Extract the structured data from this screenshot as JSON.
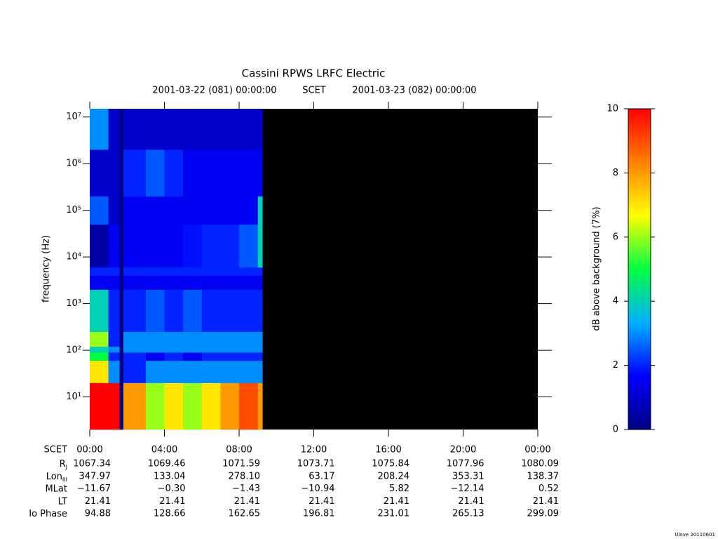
{
  "chart_data": {
    "type": "spectrogram",
    "title": "Cassini RPWS LRFC Electric",
    "subtitle_left": "2001-03-22 (081) 00:00:00",
    "subtitle_center": "SCET",
    "subtitle_right": "2001-03-23 (082) 00:00:00",
    "ylabel": "frequency (Hz)",
    "xlim": [
      0,
      24
    ],
    "xticks": [
      {
        "value": 0,
        "label": "00:00"
      },
      {
        "value": 4,
        "label": "04:00"
      },
      {
        "value": 8,
        "label": "08:00"
      },
      {
        "value": 12,
        "label": "12:00"
      },
      {
        "value": 16,
        "label": "16:00"
      },
      {
        "value": 20,
        "label": "20:00"
      },
      {
        "value": 24,
        "label": "00:00"
      }
    ],
    "ylim": [
      2,
      15000000
    ],
    "yscale": "log",
    "yticks": [
      {
        "value": 10,
        "label": "10¹"
      },
      {
        "value": 100,
        "label": "10²"
      },
      {
        "value": 1000,
        "label": "10³"
      },
      {
        "value": 10000,
        "label": "10⁴"
      },
      {
        "value": 100000,
        "label": "10⁵"
      },
      {
        "value": 1000000,
        "label": "10⁶"
      },
      {
        "value": 10000000,
        "label": "10⁷"
      }
    ],
    "background": "#000000",
    "time_edges": [
      0,
      1,
      1.6,
      1.8,
      3,
      4,
      5,
      6,
      7,
      8,
      9,
      9.25
    ],
    "freq_edges": [
      2,
      20,
      60,
      90,
      120,
      250,
      2000,
      4000,
      6000,
      50000,
      200000,
      2000000,
      15000000
    ],
    "z": [
      [
        10,
        10,
        0,
        8,
        6,
        7,
        6,
        7,
        8,
        9,
        8
      ],
      [
        7,
        3,
        0,
        2,
        3,
        3,
        3,
        3,
        3,
        3,
        3
      ],
      [
        5,
        2,
        0,
        2,
        1.5,
        2,
        1.5,
        2,
        2,
        2,
        2
      ],
      [
        4,
        3,
        0,
        3,
        3,
        3,
        3,
        3,
        3,
        3,
        3
      ],
      [
        6,
        2,
        0,
        3,
        3,
        3,
        3,
        3,
        3,
        3,
        3
      ],
      [
        4,
        2,
        0,
        2,
        2.5,
        2,
        2.5,
        2,
        2,
        2,
        2
      ],
      [
        1.5,
        1.5,
        0,
        1.5,
        1.5,
        1.5,
        1.5,
        1.5,
        1.5,
        1.5,
        1.5
      ],
      [
        2,
        2,
        0,
        2,
        2,
        2,
        2,
        2,
        2,
        2,
        2
      ],
      [
        0.5,
        1.5,
        0,
        1.5,
        1.5,
        1.5,
        1.8,
        2,
        2,
        2.5,
        4
      ],
      [
        2.5,
        1,
        0,
        1.5,
        1.5,
        1.5,
        1.5,
        1.5,
        1.5,
        1.5,
        4
      ],
      [
        1,
        1,
        0,
        2,
        2.5,
        2,
        1.5,
        1.5,
        1.5,
        1.5,
        1.5
      ],
      [
        3,
        1,
        0,
        1,
        1,
        1,
        1,
        1,
        1,
        1,
        1
      ]
    ],
    "zlim": [
      0,
      10
    ],
    "zticks": [
      0,
      2,
      4,
      6,
      8,
      10
    ],
    "zlabel": "dB above background (7%)",
    "colormap": [
      "#000080",
      "#0000ff",
      "#00b0ff",
      "#00ff40",
      "#ffff00",
      "#ff8000",
      "#ff0000"
    ],
    "ephemeris_time_label": "SCET",
    "ephemeris": [
      {
        "label": "R",
        "sub": "J",
        "values": [
          "1067.34",
          "1069.46",
          "1071.59",
          "1073.71",
          "1075.84",
          "1077.96",
          "1080.09"
        ]
      },
      {
        "label": "Lon",
        "sub": "III",
        "values": [
          "347.97",
          "133.04",
          "278.10",
          "63.17",
          "208.24",
          "353.31",
          "138.37"
        ]
      },
      {
        "label": "MLat",
        "values": [
          "−11.67",
          "−0.30",
          "−1.43",
          "−10.94",
          "5.82",
          "−12.14",
          "0.52"
        ]
      },
      {
        "label": "LT",
        "values": [
          "21.41",
          "21.41",
          "21.41",
          "21.41",
          "21.41",
          "21.41",
          "21.41"
        ]
      },
      {
        "label": "Io Phase",
        "values": [
          "94.88",
          "128.66",
          "162.65",
          "196.81",
          "231.01",
          "265.13",
          "299.09"
        ]
      }
    ],
    "footer": "Ulove 20110601"
  }
}
